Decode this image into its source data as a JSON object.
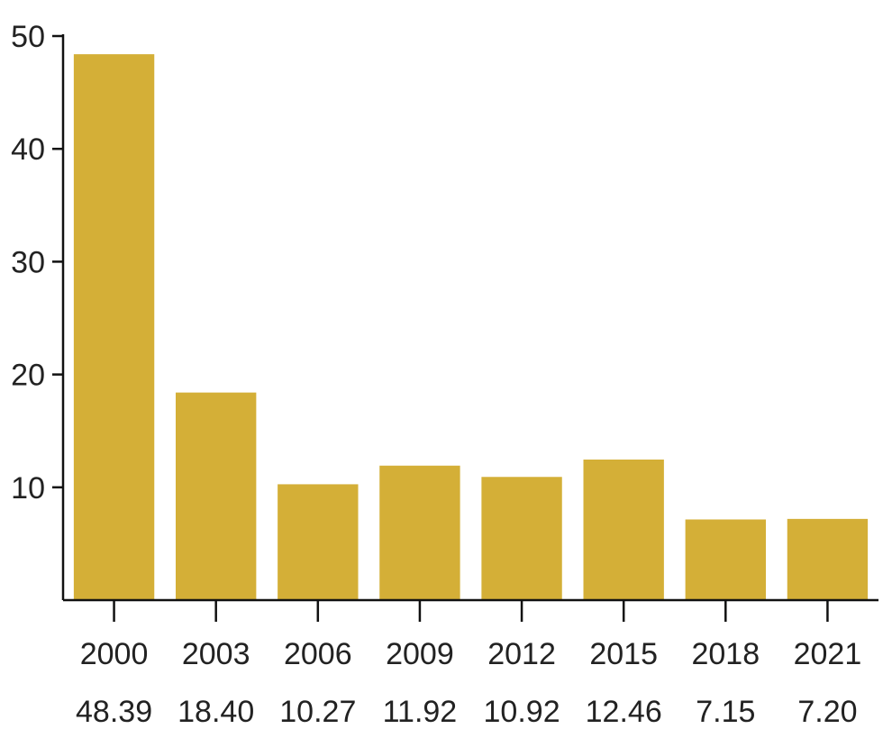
{
  "chart_data": {
    "type": "bar",
    "categories": [
      "2000",
      "2003",
      "2006",
      "2009",
      "2012",
      "2015",
      "2018",
      "2021"
    ],
    "values": [
      48.39,
      18.4,
      10.27,
      11.92,
      10.92,
      12.46,
      7.15,
      7.2
    ],
    "value_labels": [
      "48.39",
      "18.40",
      "10.27",
      "11.92",
      "10.92",
      "12.46",
      "7.15",
      "7.20"
    ],
    "yticks": [
      10,
      20,
      30,
      40,
      50
    ],
    "ylim": [
      0,
      50
    ],
    "grid": false,
    "bar_color": "#D4AF37"
  }
}
